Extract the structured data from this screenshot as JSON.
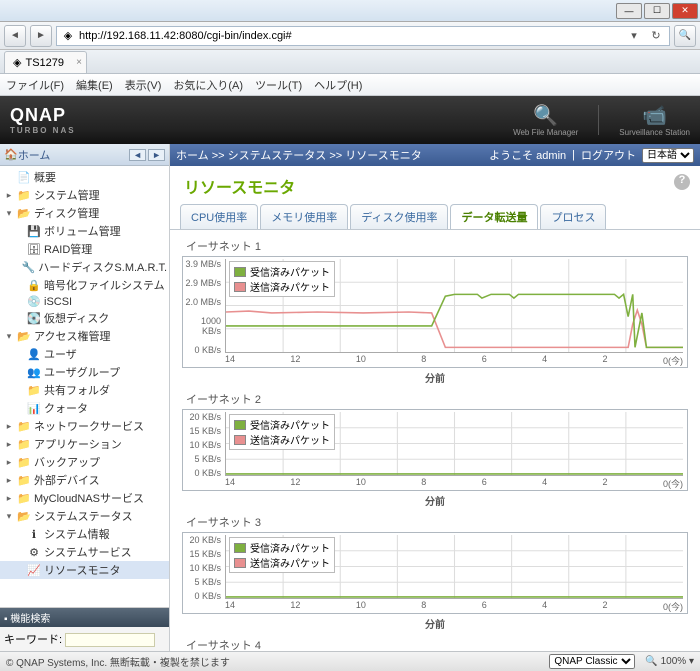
{
  "browser": {
    "url": "http://192.168.11.42:8080/cgi-bin/index.cgi#",
    "tab_title": "TS1279",
    "menu": [
      "ファイル(F)",
      "編集(E)",
      "表示(V)",
      "お気に入り(A)",
      "ツール(T)",
      "ヘルプ(H)"
    ]
  },
  "header": {
    "brand": "QNAP",
    "subtitle": "TURBO NAS",
    "icons": [
      {
        "label": "Web File Manager"
      },
      {
        "label": "Surveillance Station"
      }
    ]
  },
  "sidebar": {
    "home": "ホーム",
    "search_header": "機能検索",
    "keyword_label": "キーワード:",
    "items": [
      {
        "depth": 0,
        "tw": "",
        "icon": "📄",
        "label": "概要",
        "cls": ""
      },
      {
        "depth": 0,
        "tw": "▸",
        "icon": "📁",
        "label": "システム管理",
        "cls": "folder"
      },
      {
        "depth": 0,
        "tw": "▾",
        "icon": "📂",
        "label": "ディスク管理",
        "cls": "folder open"
      },
      {
        "depth": 1,
        "tw": "",
        "icon": "💾",
        "label": "ボリューム管理",
        "cls": ""
      },
      {
        "depth": 1,
        "tw": "",
        "icon": "🗄",
        "label": "RAID管理",
        "cls": ""
      },
      {
        "depth": 1,
        "tw": "",
        "icon": "🔧",
        "label": "ハードディスクS.M.A.R.T.",
        "cls": ""
      },
      {
        "depth": 1,
        "tw": "",
        "icon": "🔒",
        "label": "暗号化ファイルシステム",
        "cls": ""
      },
      {
        "depth": 1,
        "tw": "",
        "icon": "💿",
        "label": "iSCSI",
        "cls": ""
      },
      {
        "depth": 1,
        "tw": "",
        "icon": "💽",
        "label": "仮想ディスク",
        "cls": ""
      },
      {
        "depth": 0,
        "tw": "▾",
        "icon": "📂",
        "label": "アクセス権管理",
        "cls": "folder open"
      },
      {
        "depth": 1,
        "tw": "",
        "icon": "👤",
        "label": "ユーザ",
        "cls": ""
      },
      {
        "depth": 1,
        "tw": "",
        "icon": "👥",
        "label": "ユーザグループ",
        "cls": ""
      },
      {
        "depth": 1,
        "tw": "",
        "icon": "📁",
        "label": "共有フォルダ",
        "cls": ""
      },
      {
        "depth": 1,
        "tw": "",
        "icon": "📊",
        "label": "クォータ",
        "cls": ""
      },
      {
        "depth": 0,
        "tw": "▸",
        "icon": "📁",
        "label": "ネットワークサービス",
        "cls": "folder"
      },
      {
        "depth": 0,
        "tw": "▸",
        "icon": "📁",
        "label": "アプリケーション",
        "cls": "folder"
      },
      {
        "depth": 0,
        "tw": "▸",
        "icon": "📁",
        "label": "バックアップ",
        "cls": "folder"
      },
      {
        "depth": 0,
        "tw": "▸",
        "icon": "📁",
        "label": "外部デバイス",
        "cls": "folder"
      },
      {
        "depth": 0,
        "tw": "▸",
        "icon": "📁",
        "label": "MyCloudNASサービス",
        "cls": "folder"
      },
      {
        "depth": 0,
        "tw": "▾",
        "icon": "📂",
        "label": "システムステータス",
        "cls": "folder open"
      },
      {
        "depth": 1,
        "tw": "",
        "icon": "ℹ",
        "label": "システム情報",
        "cls": ""
      },
      {
        "depth": 1,
        "tw": "",
        "icon": "⚙",
        "label": "システムサービス",
        "cls": ""
      },
      {
        "depth": 1,
        "tw": "",
        "icon": "📈",
        "label": "リソースモニタ",
        "cls": "sel"
      }
    ]
  },
  "breadcrumb": {
    "path": "ホーム >> システムステータス >> リソースモニタ",
    "welcome": "ようこそ admin",
    "logout": "ログアウト",
    "lang": "日本語"
  },
  "page": {
    "title": "リソースモニタ",
    "tabs": [
      "CPU使用率",
      "メモリ使用率",
      "ディスク使用率",
      "データ転送量",
      "プロセス"
    ],
    "active_tab": 3
  },
  "charts": {
    "legend_rx": "受信済みパケット",
    "legend_tx": "送信済みパケット",
    "xaxis_title": "分前",
    "xticks": [
      "14",
      "12",
      "10",
      "8",
      "6",
      "4",
      "2",
      "0(今)"
    ],
    "colors": {
      "rx": "#7fb040",
      "tx": "#e89090",
      "grid": "#dddddd",
      "border": "#b0b8c0"
    },
    "eth1": {
      "title": "イーサネット 1",
      "ylabels": [
        "3.9 MB/s",
        "2.9 MB/s",
        "2.0 MB/s",
        "1000 KB/s",
        "0 KB/s"
      ],
      "rx_points": [
        [
          0,
          72
        ],
        [
          6,
          72
        ],
        [
          8,
          72
        ],
        [
          10,
          72
        ],
        [
          45,
          72
        ],
        [
          48,
          40
        ],
        [
          50,
          38
        ],
        [
          55,
          38
        ],
        [
          56,
          42
        ],
        [
          58,
          38
        ],
        [
          62,
          38
        ],
        [
          63,
          42
        ],
        [
          64,
          38
        ],
        [
          85,
          38
        ],
        [
          86,
          42
        ],
        [
          87,
          38
        ],
        [
          88,
          62
        ],
        [
          89,
          38
        ],
        [
          89.5,
          95
        ],
        [
          91,
          58
        ],
        [
          92,
          95
        ],
        [
          100,
          95
        ]
      ],
      "tx_points": [
        [
          0,
          57
        ],
        [
          5,
          56
        ],
        [
          10,
          58
        ],
        [
          20,
          57
        ],
        [
          30,
          58
        ],
        [
          40,
          57
        ],
        [
          45,
          58
        ],
        [
          48,
          95
        ],
        [
          88,
          95
        ],
        [
          89,
          70
        ],
        [
          90,
          55
        ],
        [
          91,
          70
        ],
        [
          92,
          95
        ],
        [
          100,
          95
        ]
      ]
    },
    "eth2": {
      "title": "イーサネット 2",
      "ylabels": [
        "20 KB/s",
        "15 KB/s",
        "10 KB/s",
        "5 KB/s",
        "0 KB/s"
      ],
      "flat": true
    },
    "eth3": {
      "title": "イーサネット 3",
      "ylabels": [
        "20 KB/s",
        "15 KB/s",
        "10 KB/s",
        "5 KB/s",
        "0 KB/s"
      ],
      "flat": true
    },
    "eth4": {
      "title": "イーサネット 4",
      "partial": true
    }
  },
  "footer": {
    "copyright": "© QNAP Systems, Inc. 無断転載・複製を禁じます",
    "theme": "QNAP Classic",
    "zoom": "100%"
  }
}
